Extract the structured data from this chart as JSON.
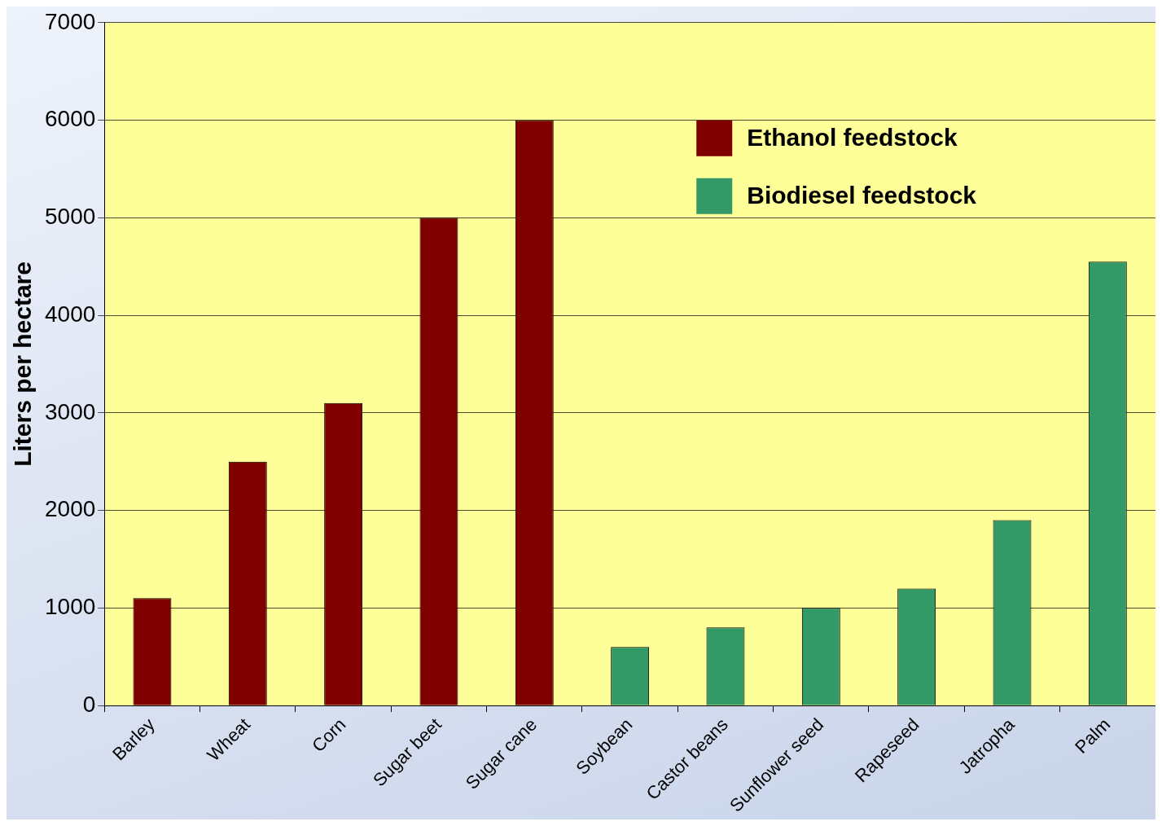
{
  "chart_data": {
    "type": "bar",
    "ylabel": "Liters per hectare",
    "categories": [
      "Barley",
      "Wheat",
      "Corn",
      "Sugar beet",
      "Sugar cane",
      "Soybean",
      "Castor beans",
      "Sunflower seed",
      "Rapeseed",
      "Jatropha",
      "Palm"
    ],
    "series": [
      {
        "name": "Ethanol feedstock",
        "color": "#800000",
        "values": [
          1100,
          2500,
          3100,
          5000,
          6000,
          null,
          null,
          null,
          null,
          null,
          null
        ]
      },
      {
        "name": "Biodiesel feedstock",
        "color": "#339966",
        "values": [
          null,
          null,
          null,
          null,
          null,
          600,
          800,
          1000,
          1200,
          1900,
          4550
        ]
      }
    ],
    "ylim": [
      0,
      7000
    ],
    "yticks": [
      0,
      1000,
      2000,
      3000,
      4000,
      5000,
      6000,
      7000
    ],
    "grid": "y",
    "legend": "top right"
  }
}
